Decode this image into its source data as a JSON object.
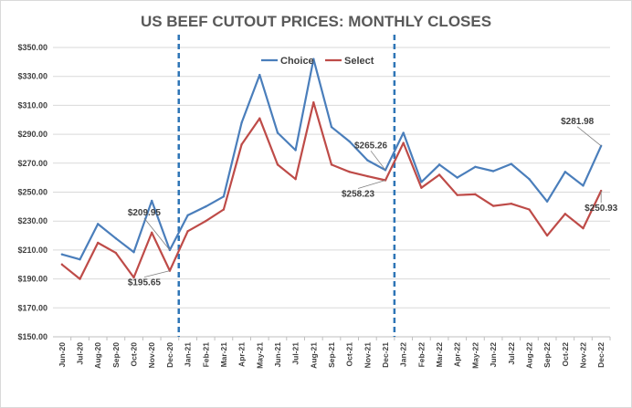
{
  "chart_data": {
    "type": "line",
    "title": "US BEEF CUTOUT PRICES: MONTHLY CLOSES",
    "xlabel": "",
    "ylabel": "",
    "ylim": [
      150,
      350
    ],
    "y_ticks": [
      "$150.00",
      "$170.00",
      "$190.00",
      "$210.00",
      "$230.00",
      "$250.00",
      "$270.00",
      "$290.00",
      "$310.00",
      "$330.00",
      "$350.00"
    ],
    "categories": [
      "Jun-20",
      "Jul-20",
      "Aug-20",
      "Sep-20",
      "Oct-20",
      "Nov-20",
      "Dec-20",
      "Jan-21",
      "Feb-21",
      "Mar-21",
      "Apr-21",
      "May-21",
      "Jun-21",
      "Jul-21",
      "Aug-21",
      "Sep-21",
      "Oct-21",
      "Nov-21",
      "Dec-21",
      "Jan-22",
      "Feb-22",
      "Mar-22",
      "Apr-22",
      "May-22",
      "Jun-22",
      "Jul-22",
      "Aug-22",
      "Sep-22",
      "Oct-22",
      "Nov-22",
      "Dec-22"
    ],
    "series": [
      {
        "name": "Choice",
        "color": "#4a7ebb",
        "values": [
          207,
          203.5,
          228,
          218,
          208.5,
          244,
          209.95,
          234,
          240,
          247,
          298,
          331,
          291,
          279,
          342,
          295,
          285,
          272,
          265.26,
          291,
          257,
          269,
          260,
          267.5,
          264.5,
          269.5,
          259,
          243.5,
          264,
          254.5,
          281.98
        ]
      },
      {
        "name": "Select",
        "color": "#be4b48",
        "values": [
          200,
          190,
          215,
          208,
          191,
          222,
          195.65,
          223,
          230,
          238,
          283,
          301,
          269,
          259,
          312,
          269,
          264,
          261,
          258.23,
          284,
          253,
          262,
          248,
          248.5,
          240.5,
          242,
          238,
          220,
          235,
          225,
          250.93
        ]
      }
    ],
    "legend": "top-center",
    "separators": [
      "between Dec-20 and Jan-21",
      "between Dec-21 and Jan-22"
    ],
    "annotations": [
      {
        "text": "$209.95",
        "category": "Dec-20",
        "series": "Choice"
      },
      {
        "text": "$195.65",
        "category": "Dec-20",
        "series": "Select"
      },
      {
        "text": "$265.26",
        "category": "Dec-21",
        "series": "Choice"
      },
      {
        "text": "$258.23",
        "category": "Dec-21",
        "series": "Select"
      },
      {
        "text": "$281.98",
        "category": "Dec-22",
        "series": "Choice"
      },
      {
        "text": "$250.93",
        "category": "Dec-22",
        "series": "Select"
      }
    ]
  }
}
